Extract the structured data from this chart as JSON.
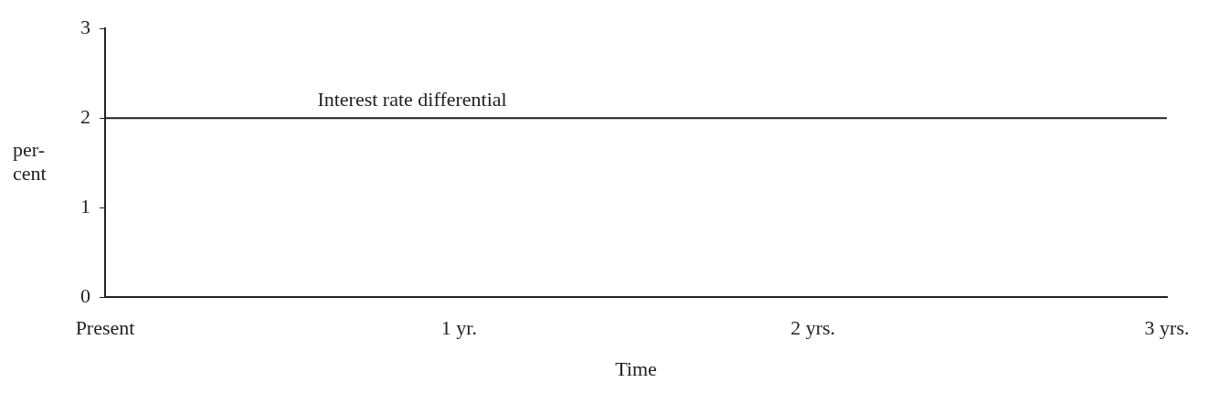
{
  "chart_data": {
    "type": "line",
    "xlabel": "Time",
    "ylabel": "per-\ncent",
    "x": [
      0,
      3
    ],
    "series": [
      {
        "name": "Interest rate differential",
        "color": "#222222",
        "values": [
          2,
          2
        ]
      }
    ],
    "xlim": [
      0,
      3
    ],
    "xticks": [
      {
        "value": 0,
        "label": "Present"
      },
      {
        "value": 1,
        "label": "1 yr."
      },
      {
        "value": 2,
        "label": "2 yrs."
      },
      {
        "value": 3,
        "label": "3 yrs."
      }
    ],
    "ylim": [
      0,
      3
    ],
    "yticks": [
      0,
      1,
      2,
      3
    ],
    "grid": false,
    "legend": false,
    "marker": "none",
    "line_style": "solid"
  }
}
